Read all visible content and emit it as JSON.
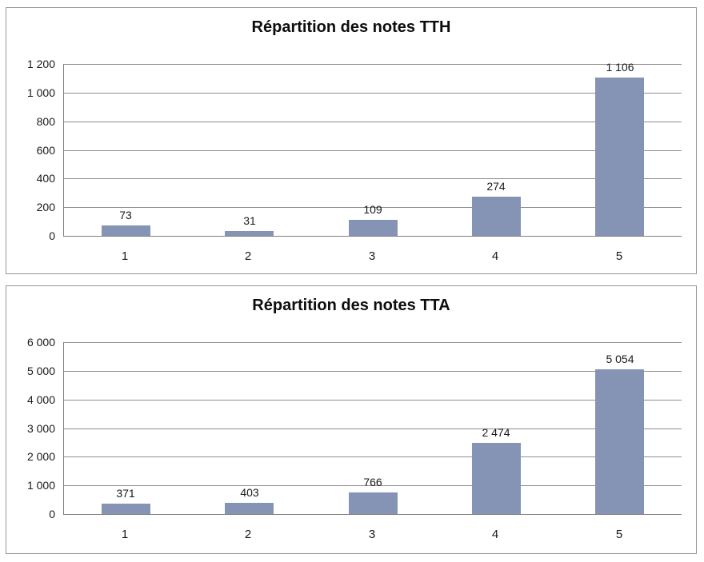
{
  "style": {
    "background": "#ffffff",
    "frame_color": "#969696",
    "axis_color": "#7f7f7f",
    "gridline_color": "#8f8f8f",
    "text_color": "#1a1a1a",
    "title_color": "#0d0d0d"
  },
  "chart_data": [
    {
      "type": "bar",
      "title": "Répartition des notes TTH",
      "categories": [
        "1",
        "2",
        "3",
        "4",
        "5"
      ],
      "values": [
        73,
        31,
        109,
        274,
        1106
      ],
      "value_labels": [
        "73",
        "31",
        "109",
        "274",
        "1 106"
      ],
      "xlabel": "",
      "ylabel": "",
      "ylim": [
        0,
        1200
      ],
      "y_tick_step": 200,
      "y_tick_labels": [
        "1 200",
        "1 000",
        "800",
        "600",
        "400",
        "200",
        "0"
      ],
      "grid": true,
      "legend": false,
      "bar_color": "#8594B4"
    },
    {
      "type": "bar",
      "title": "Répartition des notes TTA",
      "categories": [
        "1",
        "2",
        "3",
        "4",
        "5"
      ],
      "values": [
        371,
        403,
        766,
        2474,
        5054
      ],
      "value_labels": [
        "371",
        "403",
        "766",
        "2 474",
        "5 054"
      ],
      "xlabel": "",
      "ylabel": "",
      "ylim": [
        0,
        6000
      ],
      "y_tick_step": 1000,
      "y_tick_labels": [
        "6 000",
        "5 000",
        "4 000",
        "3 000",
        "2 000",
        "1 000",
        "0"
      ],
      "grid": true,
      "legend": false,
      "bar_color": "#8594B4"
    }
  ]
}
